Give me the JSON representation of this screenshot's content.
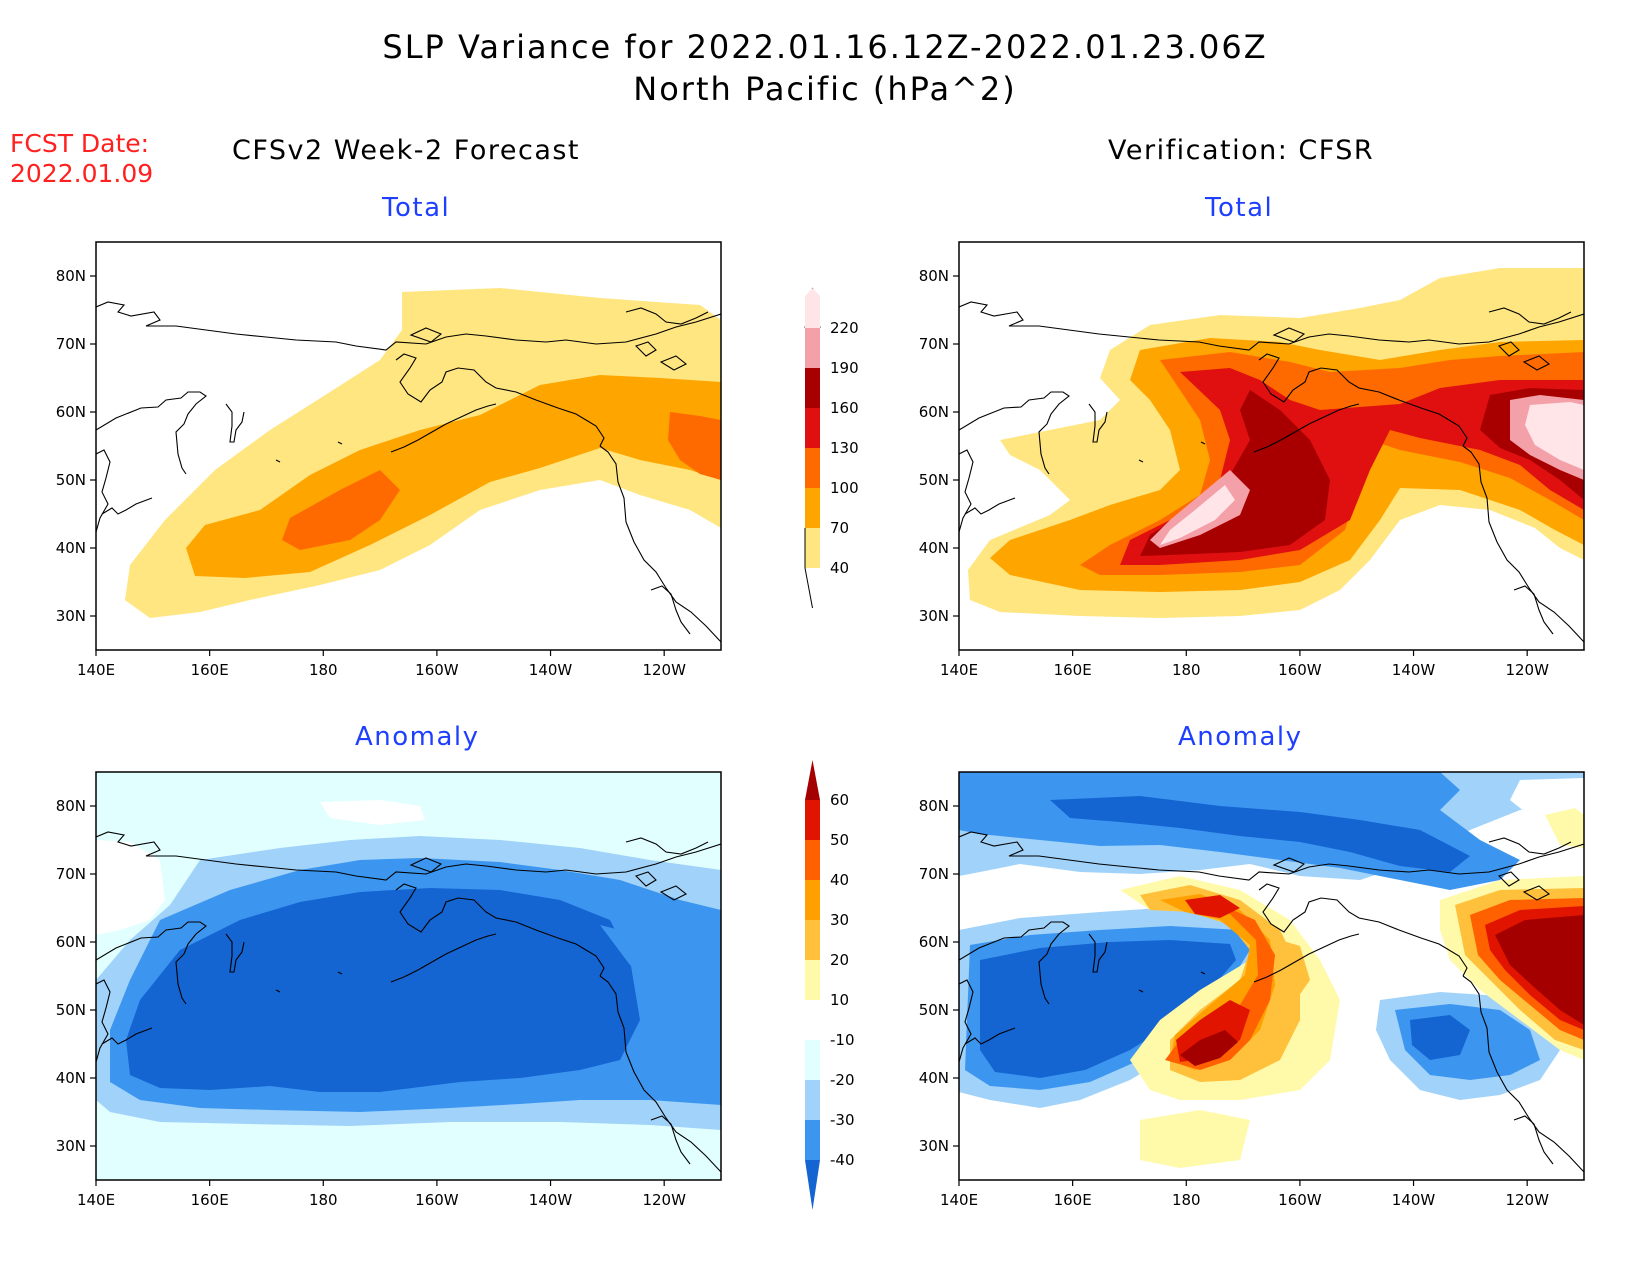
{
  "title": {
    "line1": "SLP Variance for 2022.01.16.12Z-2022.01.23.06Z",
    "line2": "North Pacific (hPa^2)"
  },
  "forecast_date": {
    "label": "FCST Date:",
    "value": "2022.01.09"
  },
  "columns": {
    "left": "CFSv2 Week-2 Forecast",
    "right": "Verification: CFSR"
  },
  "rows": {
    "top": "Total",
    "bottom": "Anomaly"
  },
  "axes": {
    "lat_ticks": [
      "80N",
      "70N",
      "60N",
      "50N",
      "40N",
      "30N"
    ],
    "lon_ticks": [
      "140E",
      "160E",
      "180",
      "160W",
      "140W",
      "120W"
    ],
    "lat_range": [
      25,
      85
    ],
    "lon_range": [
      140,
      250
    ]
  },
  "colorbars": {
    "total": {
      "levels": [
        "40",
        "70",
        "100",
        "130",
        "160",
        "190",
        "220"
      ],
      "colors": [
        "#ffe680",
        "#ffa500",
        "#ff6a00",
        "#e01010",
        "#a80000",
        "#f4a0a8",
        "#ffe4e8"
      ]
    },
    "anomaly": {
      "levels": [
        "-40",
        "-30",
        "-20",
        "-10",
        "10",
        "20",
        "30",
        "40",
        "50",
        "60"
      ],
      "colors": [
        "#1464d2",
        "#3c96f0",
        "#a0d2fa",
        "#e1ffff",
        "#ffffff",
        "#fffaaa",
        "#ffc03c",
        "#ffa000",
        "#ff6000",
        "#e11400",
        "#a50000"
      ]
    }
  }
}
